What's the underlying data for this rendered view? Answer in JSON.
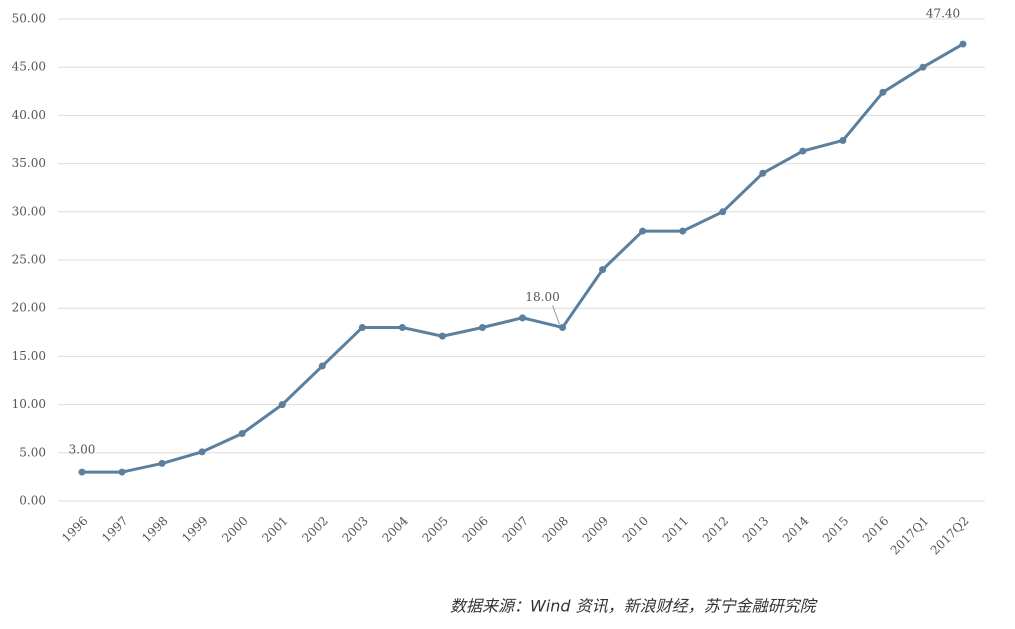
{
  "chart_data": {
    "type": "line",
    "categories": [
      "1996",
      "1997",
      "1998",
      "1999",
      "2000",
      "2001",
      "2002",
      "2003",
      "2004",
      "2005",
      "2006",
      "2007",
      "2008",
      "2009",
      "2010",
      "2011",
      "2012",
      "2013",
      "2014",
      "2015",
      "2016",
      "2017Q1",
      "2017Q2"
    ],
    "series": [
      {
        "name": null,
        "color": "#5b7f9e",
        "values": [
          3.0,
          3.0,
          3.9,
          5.1,
          7.0,
          10.0,
          14.0,
          18.0,
          18.0,
          17.1,
          18.0,
          19.0,
          18.0,
          24.0,
          28.0,
          28.0,
          30.0,
          34.0,
          36.3,
          37.4,
          42.4,
          45.0,
          47.4
        ],
        "value_labels": [
          "3.00",
          null,
          null,
          null,
          null,
          null,
          null,
          null,
          null,
          null,
          null,
          null,
          "18.00",
          null,
          null,
          null,
          null,
          null,
          null,
          null,
          null,
          null,
          "47.40"
        ]
      }
    ],
    "ylim": [
      0,
      50
    ],
    "yticks": [
      {
        "value": 0,
        "label": "0.00"
      },
      {
        "value": 5,
        "label": "5.00"
      },
      {
        "value": 10,
        "label": "10.00"
      },
      {
        "value": 15,
        "label": "15.00"
      },
      {
        "value": 20,
        "label": "20.00"
      },
      {
        "value": 25,
        "label": "25.00"
      },
      {
        "value": 30,
        "label": "30.00"
      },
      {
        "value": 35,
        "label": "35.00"
      },
      {
        "value": 40,
        "label": "40.00"
      },
      {
        "value": 45,
        "label": "45.00"
      },
      {
        "value": 50,
        "label": "50.00"
      }
    ],
    "grid": true,
    "source": "数据来源：Wind 资讯，新浪财经，苏宁金融研究院"
  }
}
